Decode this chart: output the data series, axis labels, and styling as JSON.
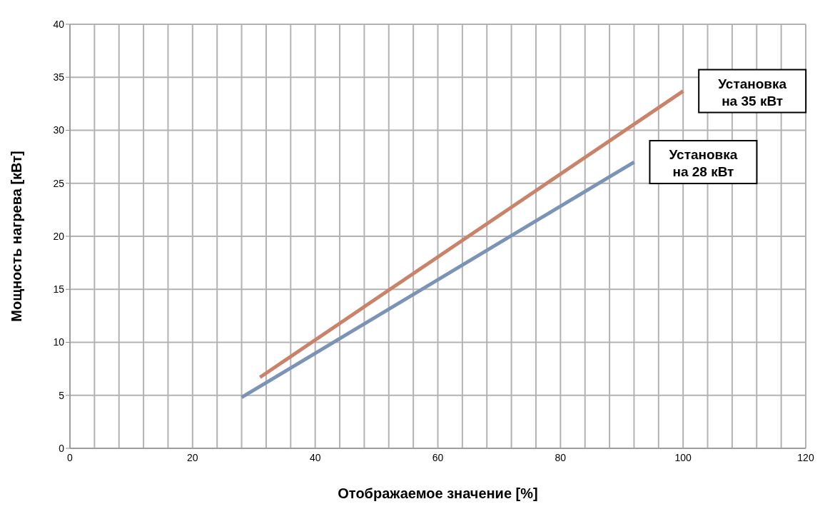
{
  "chart_data": {
    "type": "line",
    "xlabel": "Отображаемое значение [%]",
    "ylabel": "Мощность нагрева [кВт]",
    "xlim": [
      0,
      120
    ],
    "xticks": [
      0,
      {
        "value": 4,
        "label": null
      },
      {
        "value": 8,
        "label": null
      },
      {
        "value": 12,
        "label": null
      },
      {
        "value": 16,
        "label": null
      },
      20,
      {
        "value": 24,
        "label": null
      },
      {
        "value": 28,
        "label": null
      },
      {
        "value": 32,
        "label": null
      },
      {
        "value": 36,
        "label": null
      },
      40,
      {
        "value": 44,
        "label": null
      },
      {
        "value": 48,
        "label": null
      },
      {
        "value": 52,
        "label": null
      },
      {
        "value": 56,
        "label": null
      },
      60,
      {
        "value": 64,
        "label": null
      },
      {
        "value": 68,
        "label": null
      },
      {
        "value": 72,
        "label": null
      },
      {
        "value": 76,
        "label": null
      },
      80,
      {
        "value": 84,
        "label": null
      },
      {
        "value": 88,
        "label": null
      },
      {
        "value": 92,
        "label": null
      },
      {
        "value": 96,
        "label": null
      },
      100,
      {
        "value": 104,
        "label": null
      },
      {
        "value": 108,
        "label": null
      },
      {
        "value": 112,
        "label": null
      },
      {
        "value": 116,
        "label": null
      },
      120
    ],
    "ylim": [
      0,
      40
    ],
    "yticks": [
      0,
      5,
      10,
      15,
      20,
      25,
      30,
      35,
      40
    ],
    "grid": true,
    "legend": false,
    "marker": "none",
    "line_style": "solid",
    "series": [
      {
        "name": "Установка\nна 35 кВт",
        "color": "#c8836a",
        "x": [
          31,
          100
        ],
        "values": [
          6.7,
          33.7
        ]
      },
      {
        "name": "Установка\nна 28 кВт",
        "color": "#7b93b5",
        "x": [
          28,
          92
        ],
        "values": [
          4.8,
          27.0
        ]
      }
    ]
  }
}
